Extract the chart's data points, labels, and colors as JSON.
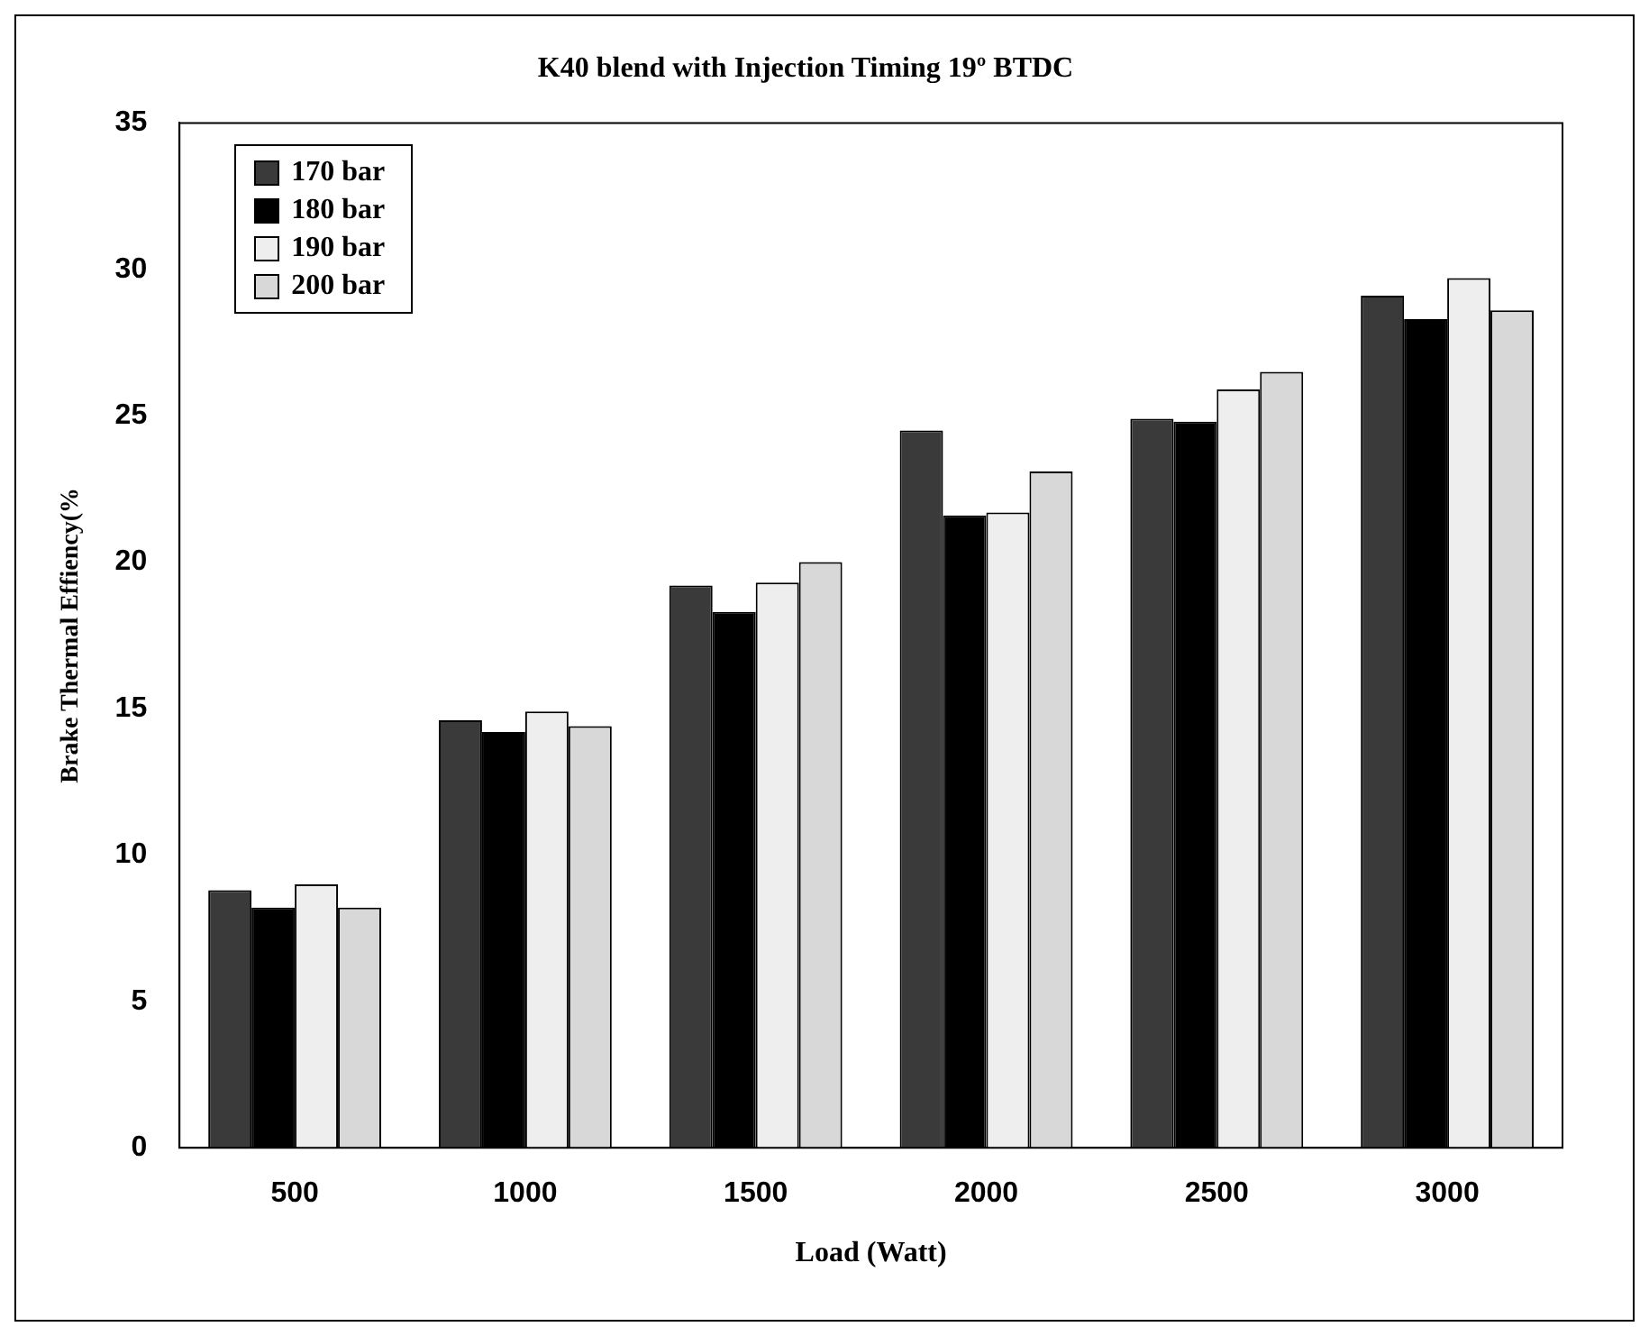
{
  "chart_data": {
    "type": "bar",
    "title": "K40 blend with Injection Timing 19º BTDC",
    "xlabel": "Load (Watt)",
    "ylabel": "Brake Thermal Effiency(%",
    "categories": [
      "500",
      "1000",
      "1500",
      "2000",
      "2500",
      "3000"
    ],
    "series": [
      {
        "name": "170 bar",
        "color": "#3a3a3a",
        "values": [
          8.8,
          14.6,
          19.2,
          24.5,
          24.9,
          29.1
        ]
      },
      {
        "name": "180 bar",
        "color": "#000000",
        "values": [
          8.2,
          14.2,
          18.3,
          21.6,
          24.8,
          28.3
        ]
      },
      {
        "name": "190 bar",
        "color": "#eeeeee",
        "values": [
          9.0,
          14.9,
          19.3,
          21.7,
          25.9,
          29.7
        ]
      },
      {
        "name": "200 bar",
        "color": "#d8d8d8",
        "values": [
          8.2,
          14.4,
          20.0,
          23.1,
          26.5,
          28.6
        ]
      }
    ],
    "ylim": [
      0,
      35
    ],
    "yticks": [
      0,
      5,
      10,
      15,
      20,
      25,
      30,
      35
    ],
    "grid": false,
    "legend": "top left"
  }
}
